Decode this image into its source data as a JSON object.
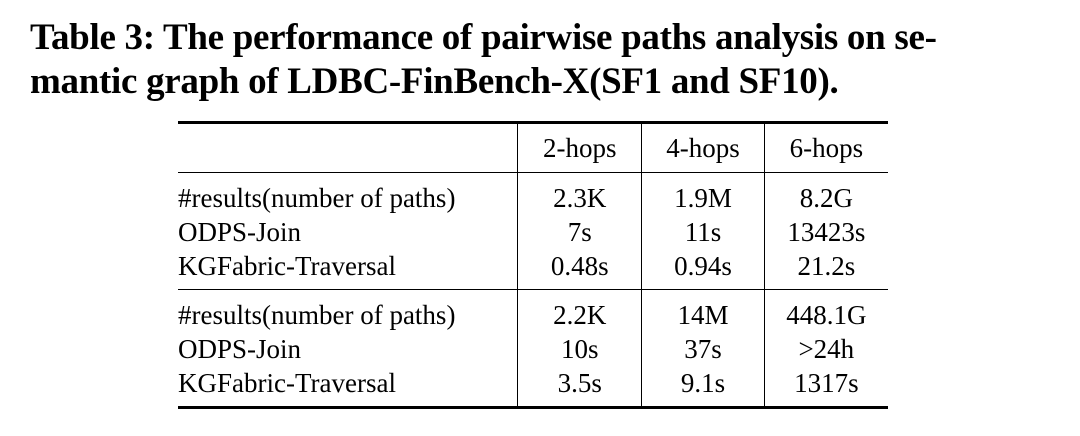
{
  "caption": {
    "line1": "Table 3: The performance of pairwise paths analysis on se-",
    "line2": "mantic graph of LDBC-FinBench-X(SF1 and SF10)."
  },
  "chart_data": {
    "type": "table",
    "columns": [
      "",
      "2-hops",
      "4-hops",
      "6-hops"
    ],
    "groups": [
      {
        "rows": [
          {
            "label": "#results(number of paths)",
            "values": [
              "2.3K",
              "1.9M",
              "8.2G"
            ]
          },
          {
            "label": "ODPS-Join",
            "values": [
              "7s",
              "11s",
              "13423s"
            ]
          },
          {
            "label": "KGFabric-Traversal",
            "values": [
              "0.48s",
              "0.94s",
              "21.2s"
            ]
          }
        ]
      },
      {
        "rows": [
          {
            "label": "#results(number of paths)",
            "values": [
              "2.2K",
              "14M",
              "448.1G"
            ]
          },
          {
            "label": "ODPS-Join",
            "values": [
              "10s",
              "37s",
              ">24h"
            ]
          },
          {
            "label": "KGFabric-Traversal",
            "values": [
              "3.5s",
              "9.1s",
              "1317s"
            ]
          }
        ]
      }
    ]
  }
}
